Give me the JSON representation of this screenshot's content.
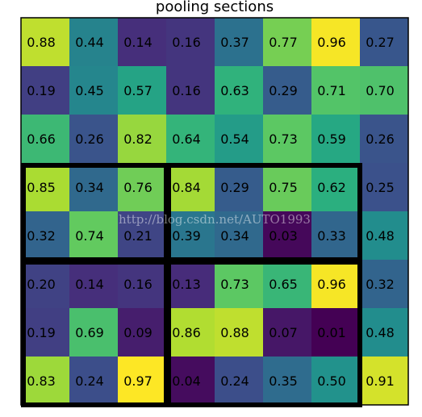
{
  "chart_data": {
    "type": "heatmap",
    "title": "pooling sections",
    "rows": 8,
    "cols": 8,
    "values": [
      [
        0.88,
        0.44,
        0.14,
        0.16,
        0.37,
        0.77,
        0.96,
        0.27
      ],
      [
        0.19,
        0.45,
        0.57,
        0.16,
        0.63,
        0.29,
        0.71,
        0.7
      ],
      [
        0.66,
        0.26,
        0.82,
        0.64,
        0.54,
        0.73,
        0.59,
        0.26
      ],
      [
        0.85,
        0.34,
        0.76,
        0.84,
        0.29,
        0.75,
        0.62,
        0.25
      ],
      [
        0.32,
        0.74,
        0.21,
        0.39,
        0.34,
        0.03,
        0.33,
        0.48
      ],
      [
        0.2,
        0.14,
        0.16,
        0.13,
        0.73,
        0.65,
        0.96,
        0.32
      ],
      [
        0.19,
        0.69,
        0.09,
        0.86,
        0.88,
        0.07,
        0.01,
        0.48
      ],
      [
        0.83,
        0.24,
        0.97,
        0.04,
        0.24,
        0.35,
        0.5,
        0.91
      ]
    ],
    "labels": [
      [
        "0.88",
        "0.44",
        "0.14",
        "0.16",
        "0.37",
        "0.77",
        "0.96",
        "0.27"
      ],
      [
        "0.19",
        "0.45",
        "0.57",
        "0.16",
        "0.63",
        "0.29",
        "0.71",
        "0.70"
      ],
      [
        "0.66",
        "0.26",
        "0.82",
        "0.64",
        "0.54",
        "0.73",
        "0.59",
        "0.26"
      ],
      [
        "0.85",
        "0.34",
        "0.76",
        "0.84",
        "0.29",
        "0.75",
        "0.62",
        "0.25"
      ],
      [
        "0.32",
        "0.74",
        "0.21",
        "0.39",
        "0.34",
        "0.03",
        "0.33",
        "0.48"
      ],
      [
        "0.20",
        "0.14",
        "0.16",
        "0.13",
        "0.73",
        "0.65",
        "0.96",
        "0.32"
      ],
      [
        "0.19",
        "0.69",
        "0.09",
        "0.86",
        "0.88",
        "0.07",
        "0.01",
        "0.48"
      ],
      [
        "0.83",
        "0.24",
        "0.97",
        "0.04",
        "0.24",
        "0.35",
        "0.50",
        "0.91"
      ]
    ],
    "colormap": "viridis",
    "vmin": 0.01,
    "vmax": 0.97,
    "grid": false,
    "pooling_sections": [
      {
        "rows": [
          3,
          5
        ],
        "cols": [
          0,
          3
        ]
      },
      {
        "rows": [
          3,
          5
        ],
        "cols": [
          3,
          7
        ]
      },
      {
        "rows": [
          5,
          8
        ],
        "cols": [
          0,
          3
        ]
      },
      {
        "rows": [
          5,
          8
        ],
        "cols": [
          3,
          7
        ]
      }
    ]
  },
  "watermark": "http://blog.csdn.net/AUTO1993",
  "colors": {
    "section_border": "#000000",
    "frame": "#000000",
    "background": "#ffffff"
  }
}
